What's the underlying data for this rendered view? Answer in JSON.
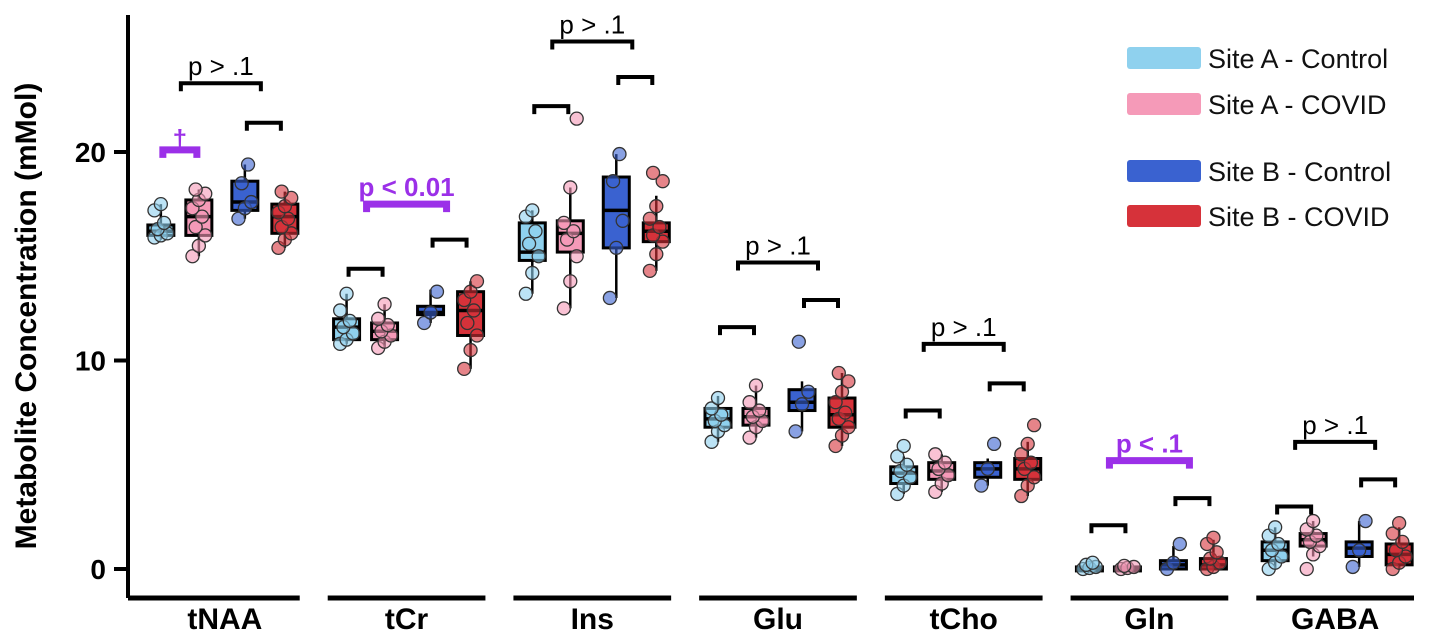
{
  "chart_data": {
    "type": "box",
    "ylabel": "Metabolite Concentration (mMol)",
    "xlabel": "",
    "ylim": [
      -1.5,
      27
    ],
    "yticks": [
      0,
      10,
      20
    ],
    "categories": [
      "tNAA",
      "tCr",
      "Ins",
      "Glu",
      "tCho",
      "Gln",
      "GABA"
    ],
    "series_names": [
      "Site A - Control",
      "Site A - COVID",
      "Site B - Control",
      "Site B - COVID"
    ],
    "series_colors": [
      "#8fd1ee",
      "#f59ab8",
      "#3a62d0",
      "#d6323a"
    ],
    "legend_position": "top-right",
    "boxes": [
      [
        {
          "q1": 16.0,
          "med": 16.2,
          "q3": 16.5,
          "min": 15.8,
          "max": 17.5,
          "points": [
            15.9,
            16.0,
            16.1,
            16.3,
            16.6,
            17.2,
            17.5
          ]
        },
        {
          "q1": 16.0,
          "med": 16.9,
          "q3": 17.7,
          "min": 15.0,
          "max": 18.2,
          "points": [
            15.0,
            15.5,
            16.0,
            16.4,
            16.9,
            17.3,
            17.7,
            18.0,
            18.2
          ]
        },
        {
          "q1": 17.2,
          "med": 17.6,
          "q3": 18.6,
          "min": 16.8,
          "max": 19.4,
          "points": [
            16.8,
            17.3,
            17.6,
            18.5,
            19.4
          ]
        },
        {
          "q1": 16.1,
          "med": 16.9,
          "q3": 17.5,
          "min": 15.4,
          "max": 18.1,
          "points": [
            15.4,
            15.8,
            16.1,
            16.4,
            16.8,
            17.1,
            17.4,
            17.8,
            18.1
          ]
        }
      ],
      [
        {
          "q1": 11.0,
          "med": 11.6,
          "q3": 12.0,
          "min": 10.8,
          "max": 13.2,
          "points": [
            10.8,
            11.0,
            11.3,
            11.6,
            11.9,
            12.4,
            13.2
          ]
        },
        {
          "q1": 11.0,
          "med": 11.4,
          "q3": 11.8,
          "min": 10.6,
          "max": 12.7,
          "points": [
            10.6,
            10.9,
            11.2,
            11.4,
            11.7,
            12.0,
            12.7
          ]
        },
        {
          "q1": 12.2,
          "med": 12.3,
          "q3": 12.6,
          "min": 11.8,
          "max": 13.4,
          "points": [
            11.8,
            12.3,
            13.3
          ]
        },
        {
          "q1": 11.2,
          "med": 12.4,
          "q3": 13.3,
          "min": 9.6,
          "max": 13.8,
          "points": [
            9.6,
            10.5,
            11.2,
            11.8,
            12.4,
            12.9,
            13.3,
            13.8
          ]
        }
      ],
      [
        {
          "q1": 14.8,
          "med": 15.2,
          "q3": 16.6,
          "min": 13.2,
          "max": 17.2,
          "points": [
            13.2,
            14.2,
            15.0,
            15.6,
            16.2,
            16.9,
            17.2
          ]
        },
        {
          "q1": 15.2,
          "med": 16.1,
          "q3": 16.7,
          "min": 12.5,
          "max": 18.3,
          "points": [
            12.5,
            13.8,
            15.0,
            15.8,
            16.2,
            16.6,
            18.3,
            21.6
          ]
        },
        {
          "q1": 15.4,
          "med": 17.2,
          "q3": 18.8,
          "min": 13.0,
          "max": 19.9,
          "points": [
            13.0,
            15.4,
            16.7,
            18.6,
            19.9
          ]
        },
        {
          "q1": 15.7,
          "med": 16.2,
          "q3": 16.6,
          "min": 14.3,
          "max": 17.9,
          "points": [
            14.3,
            15.1,
            15.7,
            16.0,
            16.4,
            16.8,
            17.4,
            18.6,
            19.0
          ]
        }
      ],
      [
        {
          "q1": 6.8,
          "med": 7.2,
          "q3": 7.7,
          "min": 6.1,
          "max": 8.3,
          "points": [
            6.1,
            6.6,
            6.9,
            7.1,
            7.4,
            7.7,
            8.2
          ]
        },
        {
          "q1": 6.9,
          "med": 7.3,
          "q3": 7.7,
          "min": 6.3,
          "max": 8.8,
          "points": [
            6.3,
            6.8,
            7.1,
            7.3,
            7.6,
            8.0,
            8.8
          ]
        },
        {
          "q1": 7.6,
          "med": 8.0,
          "q3": 8.6,
          "min": 6.6,
          "max": 9.0,
          "points": [
            6.6,
            7.9,
            8.5,
            10.9
          ]
        },
        {
          "q1": 6.8,
          "med": 7.4,
          "q3": 8.2,
          "min": 5.9,
          "max": 9.4,
          "points": [
            5.9,
            6.4,
            6.8,
            7.2,
            7.5,
            8.0,
            8.5,
            9.0,
            9.4
          ]
        }
      ],
      [
        {
          "q1": 4.1,
          "med": 4.6,
          "q3": 4.9,
          "min": 3.6,
          "max": 5.4,
          "points": [
            3.6,
            4.0,
            4.4,
            4.7,
            5.0,
            5.4,
            5.9
          ]
        },
        {
          "q1": 4.3,
          "med": 4.7,
          "q3": 5.1,
          "min": 3.7,
          "max": 5.5,
          "points": [
            3.7,
            4.1,
            4.5,
            4.8,
            5.1,
            5.5
          ]
        },
        {
          "q1": 4.4,
          "med": 4.8,
          "q3": 5.1,
          "min": 4.0,
          "max": 5.3,
          "points": [
            4.0,
            4.8,
            6.0
          ]
        },
        {
          "q1": 4.3,
          "med": 4.8,
          "q3": 5.3,
          "min": 3.5,
          "max": 6.1,
          "points": [
            3.5,
            4.0,
            4.4,
            4.8,
            5.1,
            5.5,
            6.0,
            6.9
          ]
        }
      ],
      [
        {
          "q1": 0.0,
          "med": 0.05,
          "q3": 0.1,
          "min": 0.0,
          "max": 0.3,
          "points": [
            0.0,
            0.05,
            0.1,
            0.2,
            0.3
          ]
        },
        {
          "q1": 0.0,
          "med": 0.05,
          "q3": 0.1,
          "min": 0.0,
          "max": 0.2,
          "points": [
            0.0,
            0.05,
            0.1,
            0.15
          ]
        },
        {
          "q1": 0.0,
          "med": 0.2,
          "q3": 0.4,
          "min": 0.0,
          "max": 1.1,
          "points": [
            0.0,
            0.3,
            1.2
          ]
        },
        {
          "q1": 0.0,
          "med": 0.2,
          "q3": 0.5,
          "min": 0.0,
          "max": 1.4,
          "points": [
            0.0,
            0.1,
            0.3,
            0.5,
            0.8,
            1.2,
            1.5
          ]
        }
      ],
      [
        {
          "q1": 0.4,
          "med": 0.9,
          "q3": 1.3,
          "min": 0.0,
          "max": 2.0,
          "points": [
            0.0,
            0.3,
            0.6,
            0.9,
            1.2,
            1.6,
            2.0
          ]
        },
        {
          "q1": 1.1,
          "med": 1.4,
          "q3": 1.7,
          "min": 0.6,
          "max": 2.3,
          "points": [
            0.0,
            0.7,
            1.1,
            1.3,
            1.6,
            1.9,
            2.3
          ]
        },
        {
          "q1": 0.6,
          "med": 1.0,
          "q3": 1.3,
          "min": 0.1,
          "max": 2.3,
          "points": [
            0.1,
            0.9,
            2.3
          ]
        },
        {
          "q1": 0.2,
          "med": 0.7,
          "q3": 1.2,
          "min": 0.0,
          "max": 2.0,
          "points": [
            0.0,
            0.3,
            0.6,
            0.9,
            1.3,
            1.7,
            2.2
          ]
        }
      ]
    ],
    "annotations": [
      {
        "category": "tNAA",
        "text": "p > .1",
        "span": "all",
        "y": 23.3,
        "color": "#000000"
      },
      {
        "category": "tNAA",
        "text": "†",
        "span": "A",
        "y": 20.1,
        "color": "#9b30e8"
      },
      {
        "category": "tNAA",
        "text": "",
        "span": "B",
        "y": 21.4,
        "color": "#000000"
      },
      {
        "category": "tCr",
        "text": "p < 0.01",
        "span": "all",
        "y": 17.5,
        "color": "#9b30e8"
      },
      {
        "category": "tCr",
        "text": "",
        "span": "A",
        "y": 14.4,
        "color": "#000000"
      },
      {
        "category": "tCr",
        "text": "",
        "span": "B",
        "y": 15.8,
        "color": "#000000"
      },
      {
        "category": "Ins",
        "text": "p > .1",
        "span": "all",
        "y": 25.3,
        "color": "#000000"
      },
      {
        "category": "Ins",
        "text": "",
        "span": "A",
        "y": 22.2,
        "color": "#000000"
      },
      {
        "category": "Ins",
        "text": "",
        "span": "B",
        "y": 23.6,
        "color": "#000000"
      },
      {
        "category": "Glu",
        "text": "p > .1",
        "span": "all",
        "y": 14.7,
        "color": "#000000"
      },
      {
        "category": "Glu",
        "text": "",
        "span": "A",
        "y": 11.6,
        "color": "#000000"
      },
      {
        "category": "Glu",
        "text": "",
        "span": "B",
        "y": 12.9,
        "color": "#000000"
      },
      {
        "category": "tCho",
        "text": "p > .1",
        "span": "all",
        "y": 10.8,
        "color": "#000000"
      },
      {
        "category": "tCho",
        "text": "",
        "span": "A",
        "y": 7.6,
        "color": "#000000"
      },
      {
        "category": "tCho",
        "text": "",
        "span": "B",
        "y": 8.9,
        "color": "#000000"
      },
      {
        "category": "Gln",
        "text": "p < .1",
        "span": "all",
        "y": 5.2,
        "color": "#9b30e8"
      },
      {
        "category": "Gln",
        "text": "",
        "span": "A",
        "y": 2.1,
        "color": "#000000"
      },
      {
        "category": "Gln",
        "text": "",
        "span": "B",
        "y": 3.4,
        "color": "#000000"
      },
      {
        "category": "GABA",
        "text": "p > .1",
        "span": "all",
        "y": 6.1,
        "color": "#000000"
      },
      {
        "category": "GABA",
        "text": "",
        "span": "A",
        "y": 3.0,
        "color": "#000000"
      },
      {
        "category": "GABA",
        "text": "",
        "span": "B",
        "y": 4.3,
        "color": "#000000"
      }
    ]
  }
}
